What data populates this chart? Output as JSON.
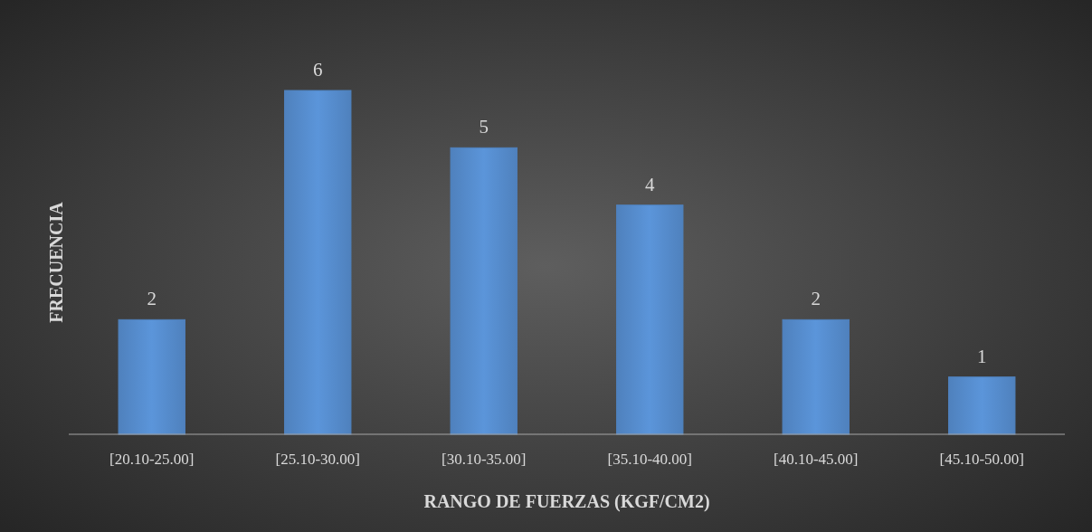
{
  "chart_data": {
    "type": "bar",
    "xlabel": "RANGO DE FUERZAS (KGF/CM2)",
    "ylabel": "FRECUENCIA",
    "categories": [
      "[20.10-25.00]",
      "[25.10-30.00]",
      "[30.10-35.00]",
      "[35.10-40.00]",
      "[40.10-45.00]",
      "[45.10-50.00]"
    ],
    "values": [
      2,
      6,
      5,
      4,
      2,
      1
    ],
    "color": "#4f81bd",
    "data_labels": true
  }
}
